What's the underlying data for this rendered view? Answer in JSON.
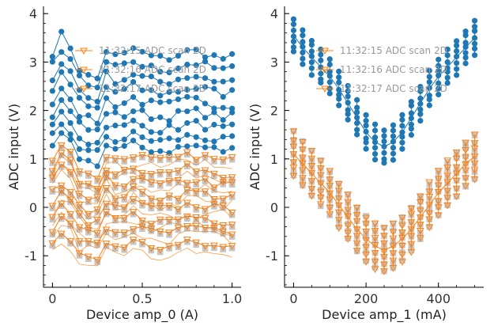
{
  "chart_data": [
    {
      "type": "line",
      "xlabel": "Device amp_0 (A)",
      "ylabel": "ADC input (V)",
      "xlim": [
        -0.05,
        1.05
      ],
      "ylim": [
        -1.65,
        4.15
      ],
      "xticks": [
        0,
        0.5,
        1.0
      ],
      "xtick_labels": [
        "0",
        "0.5",
        "1.0"
      ],
      "yticks": [
        -1,
        0,
        1,
        2,
        3,
        4
      ],
      "ytick_labels": [
        "-1",
        "0",
        "1",
        "2",
        "3",
        "4"
      ],
      "grid": false,
      "legend_position": "top-center",
      "legend": [
        {
          "label": "11:32:15 ADC scan 2D",
          "color": "#ff7f0e",
          "marker": "triangle-down"
        },
        {
          "label": "11:32:16 ADC scan 2D",
          "color": "#ff7f0e",
          "marker": "triangle-down"
        },
        {
          "label": "11:32:17 ADC scan 2D",
          "color": "#ff7f0e",
          "marker": "triangle-down"
        }
      ],
      "x": [
        0,
        0.05,
        0.1,
        0.15,
        0.2,
        0.25,
        0.3,
        0.35,
        0.4,
        0.45,
        0.5,
        0.55,
        0.6,
        0.65,
        0.7,
        0.75,
        0.8,
        0.85,
        0.9,
        0.95,
        1.0
      ],
      "series": [
        {
          "color": "#1f77b4",
          "marker": "circle",
          "group": "scan-high",
          "offset": 3.2,
          "amplitude": 0.65
        },
        {
          "color": "#1f77b4",
          "marker": "circle",
          "group": "scan-high",
          "offset": 2.95,
          "amplitude": 0.6
        },
        {
          "color": "#1f77b4",
          "marker": "circle",
          "group": "scan-high",
          "offset": 2.7,
          "amplitude": 0.55
        },
        {
          "color": "#1f77b4",
          "marker": "circle",
          "group": "scan-high",
          "offset": 2.45,
          "amplitude": 0.5
        },
        {
          "color": "#1f77b4",
          "marker": "circle",
          "group": "scan-high",
          "offset": 2.2,
          "amplitude": 0.5
        },
        {
          "color": "#1f77b4",
          "marker": "circle",
          "group": "scan-high",
          "offset": 1.95,
          "amplitude": 0.45
        },
        {
          "color": "#1f77b4",
          "marker": "circle",
          "group": "scan-high",
          "offset": 1.7,
          "amplitude": 0.45
        },
        {
          "color": "#1f77b4",
          "marker": "circle",
          "group": "scan-high",
          "offset": 1.45,
          "amplitude": 0.4
        },
        {
          "color": "#1f77b4",
          "marker": "circle",
          "group": "scan-high",
          "offset": 1.25,
          "amplitude": 0.4
        },
        {
          "color": "#ff7f0e",
          "marker": "triangle-down",
          "group": "scan-low",
          "offset": 1.05,
          "amplitude": 0.5
        },
        {
          "color": "#ff7f0e",
          "marker": "triangle-down",
          "group": "scan-low",
          "offset": 0.8,
          "amplitude": 0.5
        },
        {
          "color": "#ff7f0e",
          "marker": "triangle-down",
          "group": "scan-low",
          "offset": 0.55,
          "amplitude": 0.5
        },
        {
          "color": "#ff7f0e",
          "marker": "triangle-down",
          "group": "scan-low",
          "offset": 0.3,
          "amplitude": 0.45
        },
        {
          "color": "#ff7f0e",
          "marker": "triangle-down",
          "group": "scan-low",
          "offset": 0.05,
          "amplitude": 0.45
        },
        {
          "color": "#ff7f0e",
          "marker": "triangle-down",
          "group": "scan-low",
          "offset": -0.2,
          "amplitude": 0.45
        },
        {
          "color": "#ff7f0e",
          "marker": "triangle-down",
          "group": "scan-low",
          "offset": -0.45,
          "amplitude": 0.4
        },
        {
          "color": "#ff7f0e",
          "marker": "triangle-down",
          "group": "scan-low",
          "offset": -0.75,
          "amplitude": 0.4
        }
      ]
    },
    {
      "type": "line",
      "xlabel": "Device amp_1 (mA)",
      "ylabel": "ADC input (V)",
      "xlim": [
        -25,
        525
      ],
      "ylim": [
        -1.65,
        4.15
      ],
      "xticks": [
        0,
        200,
        400
      ],
      "xtick_labels": [
        "0",
        "200",
        "400"
      ],
      "yticks": [
        -1,
        0,
        1,
        2,
        3,
        4
      ],
      "ytick_labels": [
        "-1",
        "0",
        "1",
        "2",
        "3",
        "4"
      ],
      "grid": false,
      "legend_position": "top-center",
      "legend": [
        {
          "label": "11:32:15 ADC scan 2D",
          "color": "#ff7f0e",
          "marker": "triangle-down"
        },
        {
          "label": "11:32:16 ADC scan 2D",
          "color": "#ff7f0e",
          "marker": "triangle-down"
        },
        {
          "label": "11:32:17 ADC scan 2D",
          "color": "#ff7f0e",
          "marker": "triangle-down"
        }
      ],
      "x": [
        0,
        25,
        50,
        75,
        100,
        125,
        150,
        175,
        200,
        225,
        250,
        275,
        300,
        325,
        350,
        375,
        400,
        425,
        450,
        475,
        500
      ],
      "series": [
        {
          "color": "#1f77b4",
          "marker": "circle",
          "name_hidden": true,
          "y": [
            3.55,
            3.3,
            3.1,
            2.9,
            2.7,
            2.45,
            2.15,
            1.85,
            1.55,
            1.35,
            1.25,
            1.35,
            1.55,
            1.85,
            2.15,
            2.45,
            2.7,
            2.9,
            3.1,
            3.3,
            3.5
          ],
          "spread": 0.35
        },
        {
          "color": "#808080",
          "marker": "square",
          "name_hidden": true,
          "y": [
            1.1,
            0.9,
            0.7,
            0.5,
            0.3,
            0.05,
            -0.2,
            -0.45,
            -0.65,
            -0.8,
            -0.88,
            -0.8,
            -0.65,
            -0.45,
            -0.2,
            0.05,
            0.3,
            0.5,
            0.7,
            0.9,
            1.05
          ],
          "spread": 0.45
        },
        {
          "color": "#ff7f0e",
          "marker": "triangle-down",
          "name_hidden": true,
          "y": [
            1.1,
            0.9,
            0.7,
            0.5,
            0.3,
            0.05,
            -0.2,
            -0.45,
            -0.65,
            -0.8,
            -0.88,
            -0.8,
            -0.65,
            -0.45,
            -0.2,
            0.05,
            0.3,
            0.5,
            0.7,
            0.9,
            1.05
          ],
          "spread": 0.45
        }
      ]
    }
  ]
}
